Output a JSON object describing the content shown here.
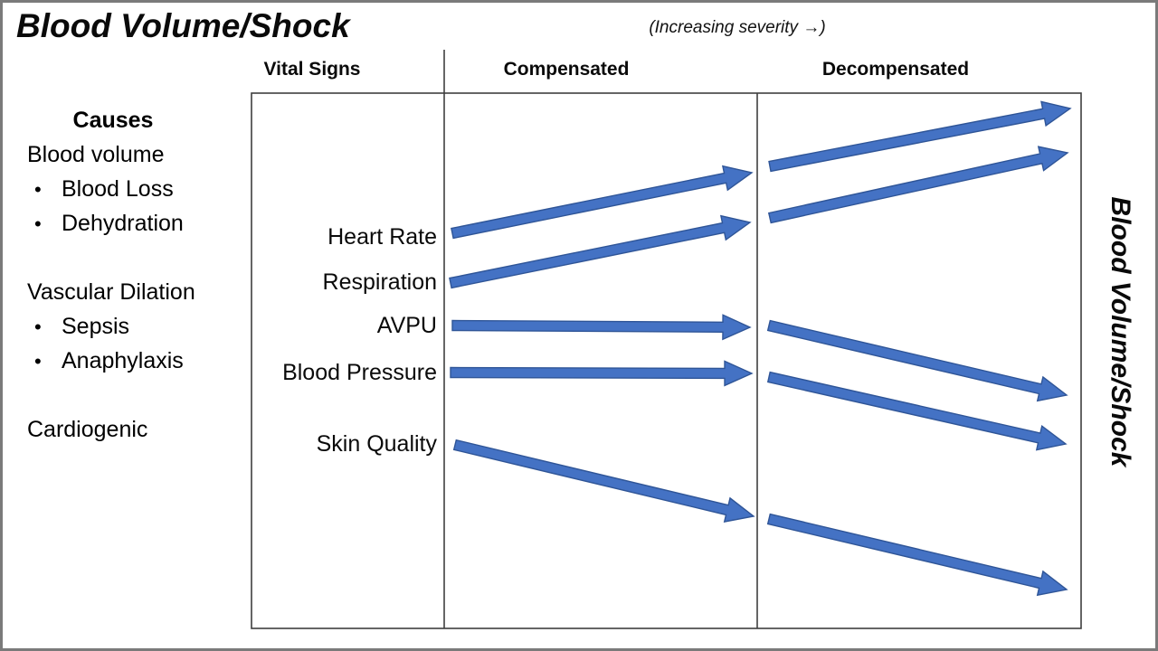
{
  "slide": {
    "title": "Blood Volume/Shock",
    "severity_note": "(Increasing severity →)",
    "right_vertical_label": "Blood Volume/Shock"
  },
  "causes": {
    "heading": "Causes",
    "bullet_char": "•",
    "lines": [
      {
        "text": "Blood volume",
        "bullet": false
      },
      {
        "text": "Blood Loss",
        "bullet": true
      },
      {
        "text": "Dehydration",
        "bullet": true
      },
      {
        "text": "",
        "bullet": false
      },
      {
        "text": "Vascular Dilation",
        "bullet": false
      },
      {
        "text": "Sepsis",
        "bullet": true
      },
      {
        "text": "Anaphylaxis",
        "bullet": true
      },
      {
        "text": "",
        "bullet": false
      },
      {
        "text": "Cardiogenic",
        "bullet": false
      }
    ]
  },
  "table": {
    "column_headers": [
      "Vital Signs",
      "Compensated",
      "Decompensated"
    ],
    "vital_signs": [
      "Heart Rate",
      "Respiration",
      "AVPU",
      "Blood Pressure",
      "Skin Quality"
    ]
  },
  "chart_data": {
    "type": "trend-arrows",
    "columns": [
      "Compensated",
      "Decompensated"
    ],
    "rows": [
      "Heart Rate",
      "Respiration",
      "AVPU",
      "Blood Pressure",
      "Skin Quality"
    ],
    "trends": [
      {
        "vital_sign": "Heart Rate",
        "compensated": "increasing",
        "decompensated": "increasing"
      },
      {
        "vital_sign": "Respiration",
        "compensated": "increasing",
        "decompensated": "increasing"
      },
      {
        "vital_sign": "AVPU",
        "compensated": "flat",
        "decompensated": "decreasing"
      },
      {
        "vital_sign": "Blood Pressure",
        "compensated": "flat",
        "decompensated": "decreasing"
      },
      {
        "vital_sign": "Skin Quality",
        "compensated": "decreasing",
        "decompensated": "decreasing"
      }
    ],
    "arrows": [
      {
        "row": "Heart Rate",
        "column": "Compensated",
        "trend": "up",
        "from": [
          500,
          258
        ],
        "to": [
          831,
          191
        ]
      },
      {
        "row": "Respiration",
        "column": "Compensated",
        "trend": "up",
        "from": [
          498,
          313
        ],
        "to": [
          829,
          246
        ]
      },
      {
        "row": "AVPU",
        "column": "Compensated",
        "trend": "flat",
        "from": [
          500,
          360
        ],
        "to": [
          829,
          362
        ]
      },
      {
        "row": "Blood Pressure",
        "column": "Compensated",
        "trend": "flat",
        "from": [
          498,
          412
        ],
        "to": [
          831,
          413
        ]
      },
      {
        "row": "Skin Quality",
        "column": "Compensated",
        "trend": "down",
        "from": [
          503,
          492
        ],
        "to": [
          833,
          571
        ]
      },
      {
        "row": "Heart Rate",
        "column": "Decompensated",
        "trend": "up",
        "from": [
          851,
          184
        ],
        "to": [
          1183,
          120
        ]
      },
      {
        "row": "Respiration",
        "column": "Decompensated",
        "trend": "up",
        "from": [
          851,
          241
        ],
        "to": [
          1180,
          169
        ]
      },
      {
        "row": "AVPU",
        "column": "Decompensated",
        "trend": "down",
        "from": [
          850,
          360
        ],
        "to": [
          1179,
          437
        ]
      },
      {
        "row": "Blood Pressure",
        "column": "Decompensated",
        "trend": "down",
        "from": [
          850,
          417
        ],
        "to": [
          1178,
          491
        ]
      },
      {
        "row": "Skin Quality",
        "column": "Decompensated",
        "trend": "down",
        "from": [
          850,
          574
        ],
        "to": [
          1179,
          652
        ]
      }
    ]
  },
  "colors": {
    "arrow_fill": "#4472C4",
    "arrow_outline": "#2F5597",
    "table_line": "#3F3F3F",
    "text": "#000000",
    "slide_border": "#7A7A7A",
    "background": "#FFFFFF"
  }
}
